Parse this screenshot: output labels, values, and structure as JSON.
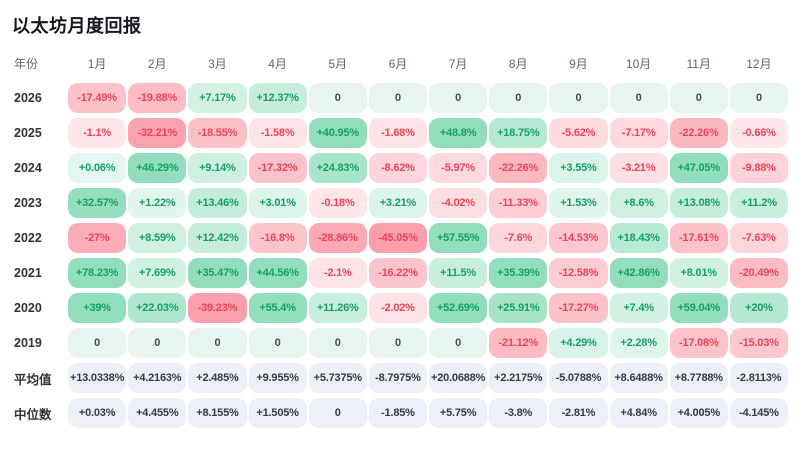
{
  "colors": {
    "positive_base": "#2ebe7d",
    "negative_base": "#f6465d",
    "positive_text": "#15a163",
    "negative_text": "#f04358",
    "zero_bg": "#e7f5ee",
    "zero_text": "#434a56",
    "summary_bg": "#edf0f9",
    "summary_text": "#333b4a",
    "header_text": "#5d6779",
    "row_label_text": "#2e333b",
    "title_text": "#15181d"
  },
  "chart_data": {
    "type": "heatmap",
    "title": "以太坊月度回报",
    "row_label_header": "年份",
    "x_labels": [
      "1月",
      "2月",
      "3月",
      "4月",
      "5月",
      "6月",
      "7月",
      "8月",
      "9月",
      "10月",
      "11月",
      "12月"
    ],
    "color_scale_note": "green = positive return, red = negative return, intensity proportional to magnitude; zero cells pale mint; summary rows gray",
    "rows": [
      {
        "label": "2026",
        "kind": "year",
        "values": [
          "-17.49%",
          "-19.88%",
          "+7.17%",
          "+12.37%",
          "0",
          "0",
          "0",
          "0",
          "0",
          "0",
          "0",
          "0"
        ]
      },
      {
        "label": "2025",
        "kind": "year",
        "values": [
          "-1.1%",
          "-32.21%",
          "-18.55%",
          "-1.58%",
          "+40.95%",
          "-1.68%",
          "+48.8%",
          "+18.75%",
          "-5.62%",
          "-7.17%",
          "-22.26%",
          "-0.66%"
        ]
      },
      {
        "label": "2024",
        "kind": "year",
        "values": [
          "+0.06%",
          "+46.29%",
          "+9.14%",
          "-17.32%",
          "+24.83%",
          "-8.62%",
          "-5.97%",
          "-22.26%",
          "+3.55%",
          "-3.21%",
          "+47.05%",
          "-9.88%"
        ]
      },
      {
        "label": "2023",
        "kind": "year",
        "values": [
          "+32.57%",
          "+1.22%",
          "+13.46%",
          "+3.01%",
          "-0.18%",
          "+3.21%",
          "-4.02%",
          "-11.33%",
          "+1.53%",
          "+8.6%",
          "+13.08%",
          "+11.2%"
        ]
      },
      {
        "label": "2022",
        "kind": "year",
        "values": [
          "-27%",
          "+8.59%",
          "+12.42%",
          "-16.8%",
          "-28.86%",
          "-45.05%",
          "+57.55%",
          "-7.6%",
          "-14.53%",
          "+18.43%",
          "-17.61%",
          "-7.63%"
        ]
      },
      {
        "label": "2021",
        "kind": "year",
        "values": [
          "+78.23%",
          "+7.69%",
          "+35.47%",
          "+44.56%",
          "-2.1%",
          "-16.22%",
          "+11.5%",
          "+35.39%",
          "-12.58%",
          "+42.86%",
          "+8.01%",
          "-20.49%"
        ]
      },
      {
        "label": "2020",
        "kind": "year",
        "values": [
          "+39%",
          "+22.03%",
          "-39.23%",
          "+55.4%",
          "+11.26%",
          "-2.02%",
          "+52.69%",
          "+25.91%",
          "-17.27%",
          "+7.4%",
          "+59.04%",
          "+20%"
        ]
      },
      {
        "label": "2019",
        "kind": "year",
        "values": [
          "0",
          "0",
          "0",
          "0",
          "0",
          "0",
          "0",
          "-21.12%",
          "+4.29%",
          "+2.28%",
          "-17.08%",
          "-15.03%"
        ]
      },
      {
        "label": "平均值",
        "kind": "summary",
        "values": [
          "+13.0338%",
          "+4.2163%",
          "+2.485%",
          "+9.955%",
          "+5.7375%",
          "-8.7975%",
          "+20.0688%",
          "+2.2175%",
          "-5.0788%",
          "+8.6488%",
          "+8.7788%",
          "-2.8113%"
        ]
      },
      {
        "label": "中位数",
        "kind": "summary",
        "values": [
          "+0.03%",
          "+4.455%",
          "+8.155%",
          "+1.505%",
          "0",
          "-1.85%",
          "+5.75%",
          "-3.8%",
          "-2.81%",
          "+4.84%",
          "+4.005%",
          "-4.145%"
        ]
      }
    ]
  }
}
